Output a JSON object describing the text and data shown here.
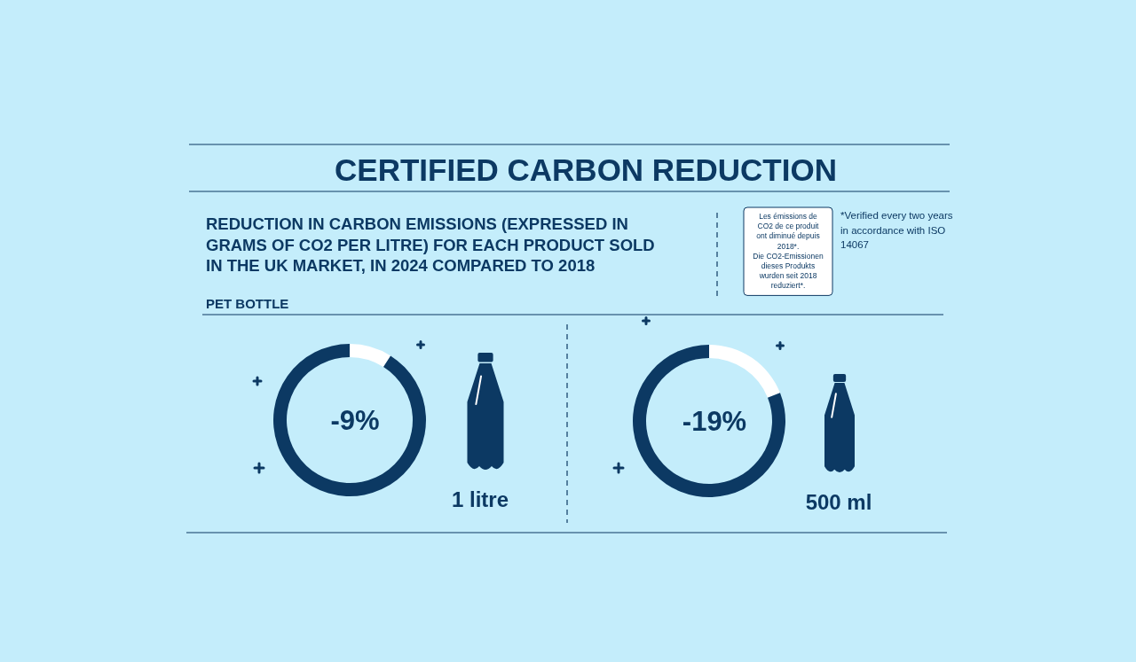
{
  "chart_data": [
    {
      "type": "other",
      "title": "CERTIFIED CARBON REDUCTION",
      "subtitle": "REDUCTION IN CARBON EMISSIONS (EXPRESSED IN GRAMS OF CO2 PER LITRE) FOR EACH PRODUCT SOLD IN THE UK MARKET, IN 2024 COMPARED TO 2018",
      "annotations": [
        "PET BOTTLE",
        "Les émissions de CO2 de ce produit ont diminué depuis 2018*.",
        "Die CO2-Emissionen dieses Produkts wurden seit 2018 reduziert*.",
        "*Verified every two years in accordance with ISO 14067"
      ]
    },
    {
      "type": "donut",
      "title": "1 litre",
      "categories": [
        null,
        null
      ],
      "values": [
        9,
        91
      ],
      "colors": [
        "#ffffff",
        "#0c3963"
      ],
      "annotations": [
        "-9%"
      ]
    },
    {
      "type": "donut",
      "title": "500 ml",
      "categories": [
        null,
        null
      ],
      "values": [
        19,
        81
      ],
      "colors": [
        "#ffffff",
        "#0c3963"
      ],
      "annotations": [
        "-19%"
      ]
    }
  ]
}
